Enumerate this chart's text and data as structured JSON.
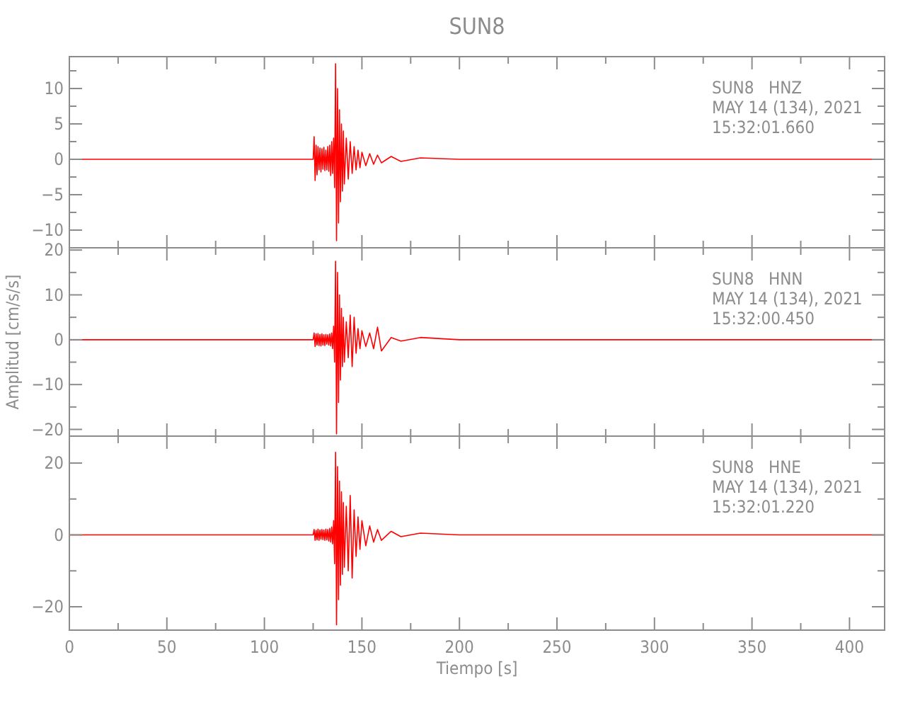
{
  "chart_data": [
    {
      "type": "line",
      "title": "SUN8",
      "annotations": [
        "SUN8   HNZ",
        "MAY 14 (134), 2021",
        "15:32:01.660"
      ],
      "tick_labels": "y",
      "xlim": [
        0,
        418
      ],
      "xticks": [
        0,
        {
          "value": 25,
          "label": null
        },
        50,
        {
          "value": 75,
          "label": null
        },
        100,
        {
          "value": 125,
          "label": null
        },
        150,
        {
          "value": 175,
          "label": null
        },
        200,
        {
          "value": 225,
          "label": null
        },
        250,
        {
          "value": 275,
          "label": null
        },
        300,
        {
          "value": 325,
          "label": null
        },
        350,
        {
          "value": 375,
          "label": null
        },
        400
      ],
      "ylim": [
        -12.5,
        14.5
      ],
      "yticks": [
        -10,
        {
          "value": -7.5,
          "label": null
        },
        -5,
        {
          "value": -2.5,
          "label": null
        },
        0,
        {
          "value": 2.5,
          "label": null
        },
        5,
        {
          "value": 7.5,
          "label": null
        },
        10,
        {
          "value": 12.5,
          "label": null
        }
      ],
      "x": [
        0,
        125,
        125.5,
        126,
        126.5,
        127,
        127.5,
        128,
        128.5,
        129,
        129.5,
        130,
        130.5,
        131,
        131.5,
        132,
        132.5,
        133,
        133.5,
        134,
        134.5,
        135,
        135.5,
        136,
        136.5,
        137,
        137.5,
        138,
        138.5,
        139,
        139.5,
        140,
        140.5,
        141,
        142,
        143,
        144,
        145,
        146,
        147,
        148,
        149,
        150,
        152,
        154,
        156,
        158,
        160,
        165,
        170,
        180,
        200,
        418
      ],
      "series": [
        {
          "color": "#ff0000",
          "values": [
            0,
            0,
            3.2,
            -3,
            2,
            -2.2,
            1.8,
            -1.5,
            1.6,
            -1.8,
            1.5,
            -1.4,
            1.7,
            -1.6,
            1.3,
            -1.5,
            1.8,
            -1.7,
            2,
            -2.3,
            2.5,
            -2,
            3,
            -4,
            13.5,
            -11.5,
            10,
            -9,
            7,
            -6,
            5,
            -4.5,
            4,
            -3.5,
            3,
            -2.8,
            2.5,
            -2,
            1.8,
            -1.5,
            1.3,
            -1.2,
            1,
            -0.9,
            0.8,
            -0.7,
            0.6,
            -0.5,
            0.4,
            -0.3,
            0.2,
            0,
            0
          ]
        }
      ]
    },
    {
      "type": "line",
      "ylabel": "Amplitud [cm/s/s]",
      "annotations": [
        "SUN8   HNN",
        "MAY 14 (134), 2021",
        "15:32:00.450"
      ],
      "tick_labels": "y",
      "xlim": [
        0,
        418
      ],
      "xticks": [
        0,
        {
          "value": 25,
          "label": null
        },
        50,
        {
          "value": 75,
          "label": null
        },
        100,
        {
          "value": 125,
          "label": null
        },
        150,
        {
          "value": 175,
          "label": null
        },
        200,
        {
          "value": 225,
          "label": null
        },
        250,
        {
          "value": 275,
          "label": null
        },
        300,
        {
          "value": 325,
          "label": null
        },
        350,
        {
          "value": 375,
          "label": null
        },
        400
      ],
      "ylim": [
        -21.5,
        20.5
      ],
      "yticks": [
        -20,
        {
          "value": -15,
          "label": null
        },
        -10,
        {
          "value": -5,
          "label": null
        },
        0,
        {
          "value": 5,
          "label": null
        },
        10,
        {
          "value": 15,
          "label": null
        },
        20
      ],
      "x": [
        0,
        125,
        125.5,
        126,
        126.5,
        127,
        127.5,
        128,
        128.5,
        129,
        129.5,
        130,
        130.5,
        131,
        131.5,
        132,
        132.5,
        133,
        133.5,
        134,
        134.5,
        135,
        135.5,
        136,
        136.5,
        137,
        137.5,
        138,
        138.5,
        139,
        139.5,
        140,
        140.5,
        141,
        142,
        143,
        144,
        145,
        146,
        147,
        148,
        149,
        150,
        152,
        154,
        156,
        158,
        160,
        165,
        170,
        180,
        200,
        418
      ],
      "series": [
        {
          "color": "#ff0000",
          "values": [
            0,
            0,
            1.5,
            -1.5,
            1.3,
            -1.2,
            1.4,
            -1.3,
            1.2,
            -1.4,
            1.3,
            -1.2,
            1.1,
            -1.3,
            1.2,
            -1,
            1.1,
            -1.2,
            1.3,
            -1.4,
            1.5,
            -2,
            3,
            -5,
            17.5,
            -21,
            15,
            -14,
            10,
            -9,
            7,
            -6,
            5,
            -5,
            4,
            -4,
            5.5,
            -6,
            5,
            -3,
            2.5,
            -2,
            2,
            -1.5,
            1.5,
            -2,
            2.8,
            -2.5,
            0.5,
            -0.3,
            0.5,
            0,
            0
          ]
        }
      ]
    },
    {
      "type": "line",
      "xlabel": "Tiempo [s]",
      "annotations": [
        "SUN8   HNE",
        "MAY 14 (134), 2021",
        "15:32:01.220"
      ],
      "xlim": [
        0,
        418
      ],
      "xticks": [
        0,
        {
          "value": 25,
          "label": null
        },
        50,
        {
          "value": 75,
          "label": null
        },
        100,
        {
          "value": 125,
          "label": null
        },
        150,
        {
          "value": 175,
          "label": null
        },
        200,
        {
          "value": 225,
          "label": null
        },
        250,
        {
          "value": 275,
          "label": null
        },
        300,
        {
          "value": 325,
          "label": null
        },
        350,
        {
          "value": 375,
          "label": null
        },
        400
      ],
      "ylim": [
        -26.5,
        27.5
      ],
      "yticks": [
        -20,
        {
          "value": -10,
          "label": null
        },
        0,
        {
          "value": 10,
          "label": null
        },
        20
      ],
      "x": [
        0,
        125,
        125.5,
        126,
        126.5,
        127,
        127.5,
        128,
        128.5,
        129,
        129.5,
        130,
        130.5,
        131,
        131.5,
        132,
        132.5,
        133,
        133.5,
        134,
        134.5,
        135,
        135.5,
        136,
        136.5,
        137,
        137.5,
        138,
        138.5,
        139,
        139.5,
        140,
        140.5,
        141,
        142,
        143,
        144,
        145,
        146,
        147,
        148,
        149,
        150,
        152,
        154,
        156,
        158,
        160,
        165,
        170,
        180,
        200,
        418
      ],
      "series": [
        {
          "color": "#ff0000",
          "values": [
            0,
            0,
            1.5,
            -1.5,
            1.3,
            -1.4,
            1.6,
            -1.5,
            1.4,
            -1.2,
            1.5,
            -1.3,
            1.4,
            -1.5,
            1.6,
            -1.4,
            1.5,
            -1.7,
            1.8,
            -2,
            2.2,
            -2.5,
            4,
            -8,
            23,
            -25,
            19,
            -18,
            15,
            -14,
            12,
            -11,
            9,
            -9,
            8,
            -10,
            11,
            -12,
            7,
            -6,
            5,
            -4,
            4,
            -3,
            2.5,
            -2,
            1.5,
            -1.5,
            1,
            -0.5,
            0.5,
            0,
            0
          ]
        }
      ]
    }
  ]
}
